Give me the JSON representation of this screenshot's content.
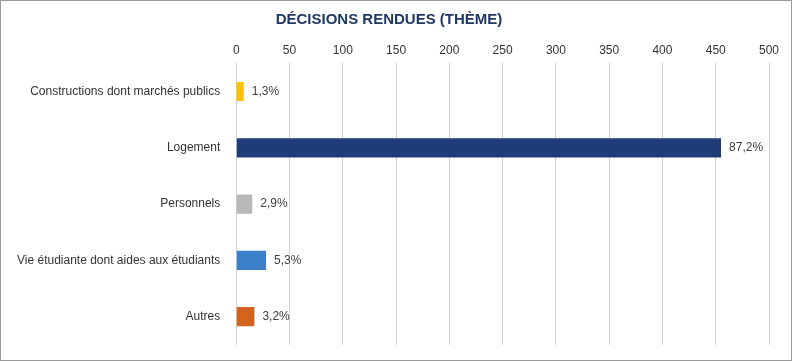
{
  "chart_data": {
    "type": "bar",
    "title": "DÉCISIONS RENDUES (THÈME)",
    "orientation": "horizontal",
    "categories": [
      "Constructions dont marchés publics",
      "Logement",
      "Personnels",
      "Vie étudiante dont aides aux étudiants",
      "Autres"
    ],
    "values": [
      7,
      455,
      15,
      28,
      17
    ],
    "shares": [
      1.3,
      87.2,
      2.9,
      5.3,
      3.2
    ],
    "share_labels": [
      "1,3%",
      "87,2%",
      "2,9%",
      "5,3%",
      "3,2%"
    ],
    "colors": [
      "#ffc000",
      "#203c78",
      "#b8b8b8",
      "#3a7fc8",
      "#d2641e"
    ],
    "xlim": [
      0,
      500
    ],
    "xticks": [
      0,
      50,
      100,
      150,
      200,
      250,
      300,
      350,
      400,
      450,
      500
    ],
    "grid": true
  }
}
